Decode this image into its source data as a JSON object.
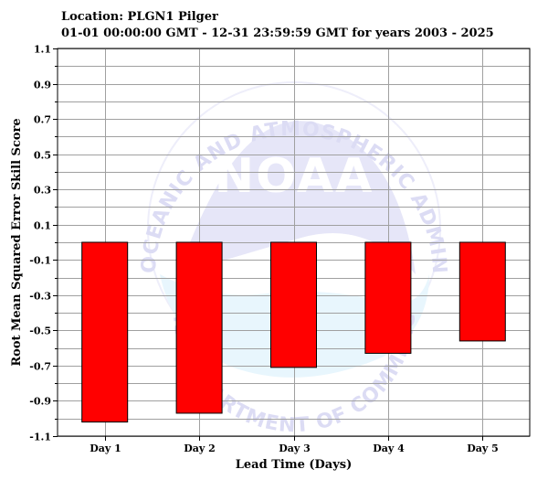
{
  "header": {
    "location": "Location: PLGN1 Pilger",
    "period": "01-01 00:00:00 GMT - 12-31 23:59:59 GMT for years 2003 - 2025"
  },
  "watermark": {
    "logo_text": "NOAA",
    "arc_top": "NATIONAL OCEANIC AND ATMOSPHERIC ADMINISTRATION",
    "arc_bottom": "U.S. DEPARTMENT OF COMMERCE"
  },
  "colors": {
    "bar_fill": "#ff0000",
    "bar_stroke": "#000000",
    "grid_major": "#a0a0a0",
    "plot_background": "#ffffff",
    "watermark_light": "#e6e6f8",
    "watermark_wave": "#e8f6fd"
  },
  "chart_data": {
    "type": "bar",
    "title": "",
    "xlabel": "Lead Time (Days)",
    "ylabel": "Root Mean Squared Error Skill Score",
    "categories": [
      "Day 1",
      "Day 2",
      "Day 3",
      "Day 4",
      "Day 5"
    ],
    "values": [
      -1.02,
      -0.97,
      -0.71,
      -0.63,
      -0.56
    ],
    "ylim": [
      -1.1,
      1.1
    ],
    "ytick_labels": [
      "1.1",
      "0.9",
      "0.7",
      "0.5",
      "0.3",
      "0.1",
      "-0.1",
      "-0.3",
      "-0.5",
      "-0.7",
      "-0.9",
      "-1.1"
    ],
    "ytick_values": [
      1.1,
      0.9,
      0.7,
      0.5,
      0.3,
      0.1,
      -0.1,
      -0.3,
      -0.5,
      -0.7,
      -0.9,
      -1.1
    ],
    "yminor_values": [
      1.0,
      0.8,
      0.6,
      0.4,
      0.2,
      0.0,
      -0.2,
      -0.4,
      -0.6,
      -0.8,
      -1.0
    ],
    "baseline": 0.0,
    "grid": true,
    "legend": "none"
  }
}
